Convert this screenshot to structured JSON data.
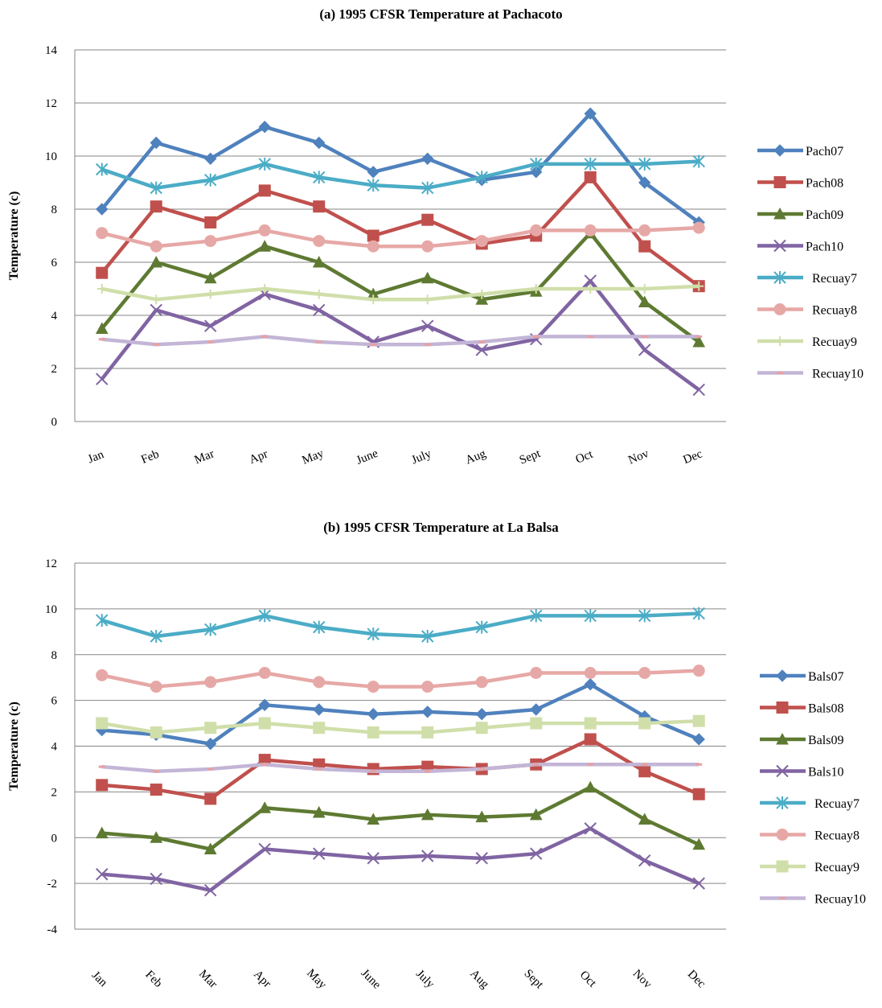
{
  "chart_data": [
    {
      "type": "line",
      "title": "(a) 1995 CFSR Temperature at Pachacoto",
      "xlabel": "",
      "ylabel": "Temperature (c)",
      "ylim": [
        0,
        14
      ],
      "yticks": [
        0,
        2,
        4,
        6,
        8,
        10,
        12,
        14
      ],
      "grid": true,
      "legend": "right",
      "categories": [
        "Jan",
        "Feb",
        "Mar",
        "Apr",
        "May",
        "June",
        "July",
        "Aug",
        "Sept",
        "Oct",
        "Nov",
        "Dec"
      ],
      "series": [
        {
          "name": "Pach07",
          "color": "#4F81BD",
          "marker": "diamond",
          "values": [
            8.0,
            10.5,
            9.9,
            11.1,
            10.5,
            9.4,
            9.9,
            9.1,
            9.4,
            11.6,
            9.0,
            7.5
          ]
        },
        {
          "name": "Pach08",
          "color": "#C0504D",
          "marker": "square",
          "values": [
            5.6,
            8.1,
            7.5,
            8.7,
            8.1,
            7.0,
            7.6,
            6.7,
            7.0,
            9.2,
            6.6,
            5.1
          ]
        },
        {
          "name": "Pach09",
          "color": "#5E7A32",
          "marker": "triangle",
          "values": [
            3.5,
            6.0,
            5.4,
            6.6,
            6.0,
            4.8,
            5.4,
            4.6,
            4.9,
            7.1,
            4.5,
            3.0
          ]
        },
        {
          "name": "Pach10",
          "color": "#8064A2",
          "marker": "x",
          "values": [
            1.6,
            4.2,
            3.6,
            4.8,
            4.2,
            3.0,
            3.6,
            2.7,
            3.1,
            5.3,
            2.7,
            1.2
          ]
        },
        {
          "name": "Recuay7",
          "color": "#4BACC6",
          "marker": "star",
          "values": [
            9.5,
            8.8,
            9.1,
            9.7,
            9.2,
            8.9,
            8.8,
            9.2,
            9.7,
            9.7,
            9.7,
            9.8
          ]
        },
        {
          "name": "Recuay8",
          "color": "#E6A8A6",
          "marker": "circle",
          "values": [
            7.1,
            6.6,
            6.8,
            7.2,
            6.8,
            6.6,
            6.6,
            6.8,
            7.2,
            7.2,
            7.2,
            7.3
          ]
        },
        {
          "name": "Recuay9",
          "color": "#D0DFAA",
          "marker": "plus",
          "values": [
            5.0,
            4.6,
            4.8,
            5.0,
            4.8,
            4.6,
            4.6,
            4.8,
            5.0,
            5.0,
            5.0,
            5.1
          ]
        },
        {
          "name": "Recuay10",
          "color": "#C3B5D6",
          "marker": "dash",
          "values": [
            3.1,
            2.9,
            3.0,
            3.2,
            3.0,
            2.9,
            2.9,
            3.0,
            3.2,
            3.2,
            3.2,
            3.2
          ]
        }
      ]
    },
    {
      "type": "line",
      "title": "(b) 1995 CFSR Temperature at La Balsa",
      "xlabel": "",
      "ylabel": "Temperature (c)",
      "ylim": [
        -4,
        12
      ],
      "yticks": [
        -4,
        -2,
        0,
        2,
        4,
        6,
        8,
        10,
        12
      ],
      "grid": true,
      "legend": "right",
      "categories": [
        "Jan",
        "Feb",
        "Mar",
        "Apr",
        "May",
        "June",
        "July",
        "Aug",
        "Sept",
        "Oct",
        "Nov",
        "Dec"
      ],
      "series": [
        {
          "name": "Bals07",
          "color": "#4F81BD",
          "marker": "diamond",
          "values": [
            4.7,
            4.5,
            4.1,
            5.8,
            5.6,
            5.4,
            5.5,
            5.4,
            5.6,
            6.7,
            5.3,
            4.3
          ]
        },
        {
          "name": "Bals08",
          "color": "#C0504D",
          "marker": "square",
          "values": [
            2.3,
            2.1,
            1.7,
            3.4,
            3.2,
            3.0,
            3.1,
            3.0,
            3.2,
            4.3,
            2.9,
            1.9
          ]
        },
        {
          "name": "Bals09",
          "color": "#5E7A32",
          "marker": "triangle",
          "values": [
            0.2,
            0.0,
            -0.5,
            1.3,
            1.1,
            0.8,
            1.0,
            0.9,
            1.0,
            2.2,
            0.8,
            -0.3
          ]
        },
        {
          "name": "Bals10",
          "color": "#8064A2",
          "marker": "x",
          "values": [
            -1.6,
            -1.8,
            -2.3,
            -0.5,
            -0.7,
            -0.9,
            -0.8,
            -0.9,
            -0.7,
            0.4,
            -1.0,
            -2.0
          ]
        },
        {
          "name": "Recuay7",
          "color": "#4BACC6",
          "marker": "star",
          "values": [
            9.5,
            8.8,
            9.1,
            9.7,
            9.2,
            8.9,
            8.8,
            9.2,
            9.7,
            9.7,
            9.7,
            9.8
          ]
        },
        {
          "name": "Recuay8",
          "color": "#E6A8A6",
          "marker": "circle",
          "values": [
            7.1,
            6.6,
            6.8,
            7.2,
            6.8,
            6.6,
            6.6,
            6.8,
            7.2,
            7.2,
            7.2,
            7.3
          ]
        },
        {
          "name": "Recuay9",
          "color": "#D0DFAA",
          "marker": "square",
          "values": [
            5.0,
            4.6,
            4.8,
            5.0,
            4.8,
            4.6,
            4.6,
            4.8,
            5.0,
            5.0,
            5.0,
            5.1
          ]
        },
        {
          "name": "Recuay10",
          "color": "#C3B5D6",
          "marker": "dash",
          "values": [
            3.1,
            2.9,
            3.0,
            3.2,
            3.0,
            2.9,
            2.9,
            3.0,
            3.2,
            3.2,
            3.2,
            3.2
          ]
        }
      ]
    }
  ]
}
